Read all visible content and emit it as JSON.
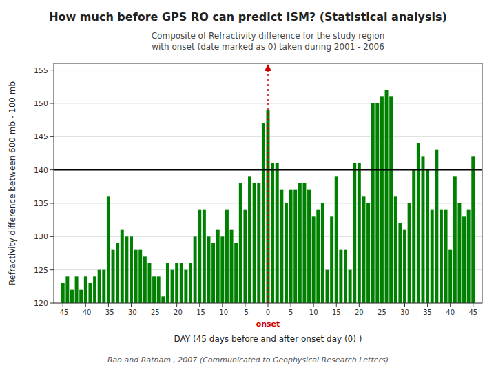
{
  "chart_data": {
    "type": "bar",
    "title": "How much before GPS RO can predict ISM? (Statistical analysis)",
    "subtitle": [
      "Composite of Refractivity difference for the study region",
      "with onset (date marked as 0) taken during 2001 - 2006"
    ],
    "xlabel": "DAY (45 days before and after onset day (0) )",
    "ylabel": "Refractivity difference between 600 mb - 100 mb",
    "caption": "Rao and Ratnam., 2007 (Communicated to Geophysical Research Letters)",
    "color": "#008000",
    "x": [
      -45,
      -44,
      -43,
      -42,
      -41,
      -40,
      -39,
      -38,
      -37,
      -36,
      -35,
      -34,
      -33,
      -32,
      -31,
      -30,
      -29,
      -28,
      -27,
      -26,
      -25,
      -24,
      -23,
      -22,
      -21,
      -20,
      -19,
      -18,
      -17,
      -16,
      -15,
      -14,
      -13,
      -12,
      -11,
      -10,
      -9,
      -8,
      -7,
      -6,
      -5,
      -4,
      -3,
      -2,
      -1,
      0,
      1,
      2,
      3,
      4,
      5,
      6,
      7,
      8,
      9,
      10,
      11,
      12,
      13,
      14,
      15,
      16,
      17,
      18,
      19,
      20,
      21,
      22,
      23,
      24,
      25,
      26,
      27,
      28,
      29,
      30,
      31,
      32,
      33,
      34,
      35,
      36,
      37,
      38,
      39,
      40,
      41,
      42,
      43,
      44,
      45
    ],
    "values": [
      123,
      124,
      122,
      124,
      122,
      124,
      123,
      124,
      125,
      125,
      136,
      128,
      129,
      131,
      130,
      130,
      128,
      128,
      127,
      126,
      124,
      124,
      121,
      126,
      125,
      126,
      126,
      125,
      126,
      130,
      134,
      134,
      130,
      129,
      131,
      130,
      134,
      131,
      129,
      138,
      134,
      139,
      138,
      138,
      147,
      149,
      141,
      141,
      137,
      135,
      137,
      137,
      138,
      138,
      137,
      133,
      134,
      135,
      125,
      133,
      139,
      128,
      128,
      125,
      141,
      141,
      136,
      135,
      150,
      150,
      151,
      152,
      151,
      136,
      132,
      131,
      135,
      140,
      144,
      142,
      140,
      134,
      143,
      134,
      134,
      128,
      139,
      135,
      133,
      134,
      142
    ],
    "xlim": [
      -47,
      47
    ],
    "xticks": [
      -45,
      -40,
      -35,
      -30,
      -25,
      -20,
      -15,
      -10,
      -5,
      0,
      5,
      10,
      15,
      20,
      25,
      30,
      35,
      40,
      45
    ],
    "ylim": [
      120,
      156
    ],
    "yticks": [
      120,
      125,
      130,
      135,
      140,
      145,
      150,
      155
    ],
    "grid": true,
    "annotations": [
      {
        "type": "hline",
        "y": 140,
        "color": "#000000"
      },
      {
        "type": "vline",
        "x": 0,
        "label": "onset",
        "color": "#cc0000"
      }
    ]
  }
}
